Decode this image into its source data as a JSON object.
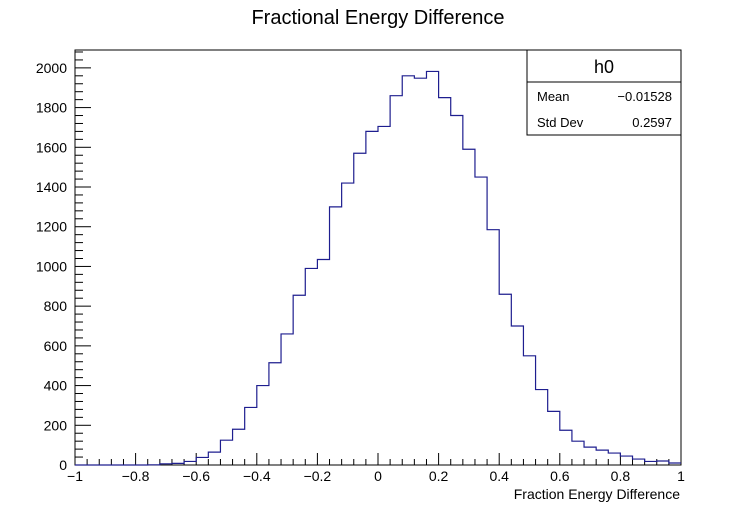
{
  "chart_data": {
    "type": "histogram",
    "title": "Fractional Energy Difference",
    "xlabel": "Fraction Energy Difference",
    "ylabel": "",
    "xlim": [
      -1,
      1
    ],
    "ylim": [
      0,
      2090
    ],
    "xticks": [
      -1,
      -0.8,
      -0.6,
      -0.4,
      -0.2,
      0,
      0.2,
      0.4,
      0.6,
      0.8,
      1
    ],
    "xtick_labels": [
      "−1",
      "−0.8",
      "−0.6",
      "−0.4",
      "−0.2",
      "0",
      "0.2",
      "0.4",
      "0.6",
      "0.8",
      "1"
    ],
    "yticks": [
      0,
      200,
      400,
      600,
      800,
      1000,
      1200,
      1400,
      1600,
      1800,
      2000
    ],
    "ytick_labels": [
      "0",
      "200",
      "400",
      "600",
      "800",
      "1000",
      "1200",
      "1400",
      "1600",
      "1800",
      "2000"
    ],
    "bin_edges_range": [
      -1,
      1
    ],
    "n_bins": 50,
    "counts": [
      0,
      0,
      0,
      0,
      0,
      0,
      1,
      6,
      8,
      18,
      38,
      65,
      125,
      180,
      290,
      400,
      515,
      660,
      855,
      990,
      1035,
      1300,
      1420,
      1570,
      1680,
      1705,
      1860,
      1960,
      1948,
      1982,
      1850,
      1760,
      1590,
      1450,
      1185,
      860,
      700,
      550,
      380,
      270,
      175,
      120,
      90,
      75,
      60,
      45,
      30,
      18,
      20,
      10
    ],
    "line_color": "#1e1e8f",
    "frame_color": "#000000",
    "grid": false,
    "legend": "none",
    "stats_box": {
      "name": "h0",
      "rows": [
        {
          "label": "Mean",
          "value": "−0.01528"
        },
        {
          "label": "Std Dev",
          "value": "0.2597"
        }
      ],
      "placement": "top-right"
    }
  }
}
